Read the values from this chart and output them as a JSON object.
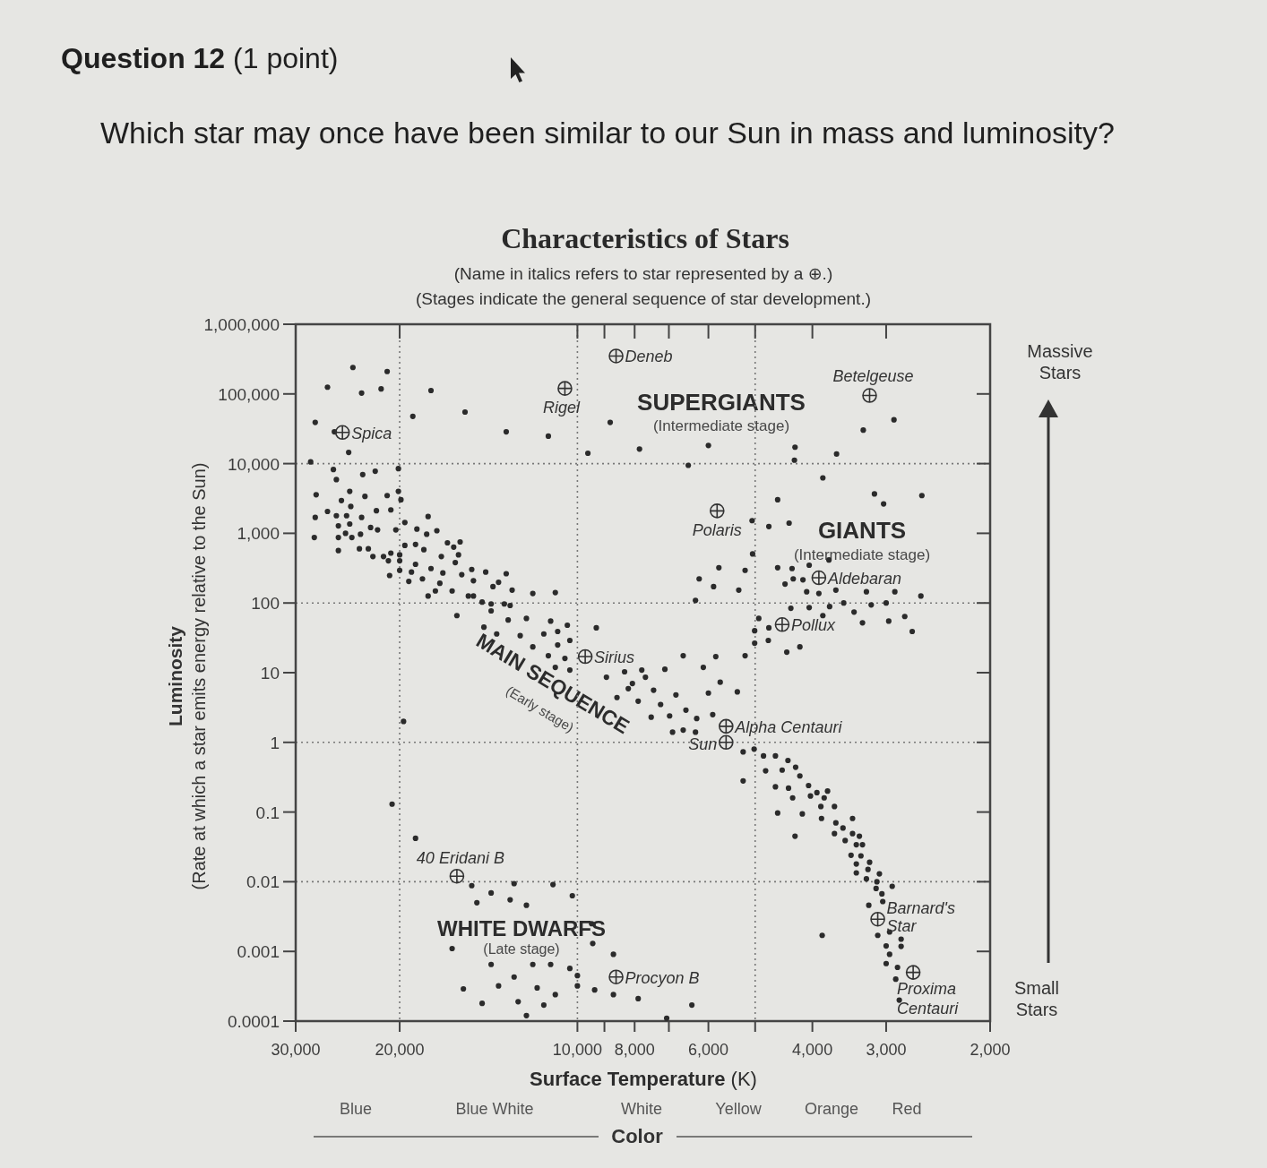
{
  "chart_data": {
    "type": "scatter",
    "title": "Characteristics of Stars",
    "subtitle": "(Name in italics refers to star represented by a ⊕.)\n(Stages indicate the general sequence of star development.)",
    "xlabel": "Surface Temperature (K)",
    "ylabel": "Luminosity\n(Rate at which a star emits energy relative to the Sun)",
    "log": "xy",
    "marker": "circle",
    "xlim": [
      30000,
      2000
    ],
    "ylim": [
      0.0001,
      1000000
    ],
    "xticks": [
      {
        "value": 30000,
        "label": "30,000"
      },
      {
        "value": 20000,
        "label": "20,000"
      },
      {
        "value": 10000,
        "label": "10,000"
      },
      {
        "value": 9000,
        "label": null
      },
      {
        "value": 8000,
        "label": "8,000"
      },
      {
        "value": 7000,
        "label": null
      },
      {
        "value": 6000,
        "label": "6,000"
      },
      {
        "value": 5000,
        "label": null
      },
      {
        "value": 4000,
        "label": "4,000"
      },
      {
        "value": 3000,
        "label": "3,000"
      },
      {
        "value": 2000,
        "label": "2,000"
      }
    ],
    "yticks": [
      {
        "value": 1000000,
        "label": "1,000,000"
      },
      {
        "value": 100000,
        "label": "100,000"
      },
      {
        "value": 10000,
        "label": "10,000"
      },
      {
        "value": 1000,
        "label": "1,000"
      },
      100,
      10,
      1,
      0.1,
      0.01,
      0.001,
      0.0001
    ],
    "ref_lines": [
      {
        "axis": "x",
        "value": 20000,
        "line_style": "dotted",
        "color": "#777777"
      },
      {
        "axis": "x",
        "value": 10000,
        "line_style": "dotted",
        "color": "#777777"
      },
      {
        "axis": "x",
        "value": 5000,
        "line_style": "dotted",
        "color": "#777777"
      },
      {
        "axis": "y",
        "value": 10000,
        "line_style": "dotted",
        "color": "#777777"
      },
      {
        "axis": "y",
        "value": 100,
        "line_style": "dotted",
        "color": "#777777"
      },
      {
        "axis": "y",
        "value": 1,
        "line_style": "dotted",
        "color": "#777777"
      },
      {
        "axis": "y",
        "value": 0.01,
        "line_style": "dotted",
        "color": "#777777"
      }
    ],
    "series": [
      {
        "color": "#2b2b2b",
        "x": [
          24000,
          21000,
          26500,
          23200,
          21500,
          17700,
          27800,
          25800,
          19000,
          15500,
          13200,
          11200,
          24400,
          9600,
          8800,
          7850,
          6000,
          6490,
          4280,
          4290,
          3640,
          3280,
          2910,
          3840,
          4580,
          3140,
          3030,
          2610,
          5060,
          4740,
          4380,
          5050,
          5760,
          5200,
          4580,
          4330,
          4050,
          4310,
          4150,
          4450,
          3750,
          6220,
          5880,
          5330,
          4090,
          3900,
          3650,
          3240,
          2900,
          2620,
          6310,
          4350,
          4050,
          3740,
          3540,
          3180,
          3000,
          3400,
          2790,
          3840,
          4930,
          5010,
          4740,
          5010,
          4750,
          4420,
          4200,
          3290,
          2970,
          2710,
          9290,
          6620,
          5830,
          5200,
          7110,
          6120,
          5730,
          6000,
          5360,
          6810,
          6550,
          6280,
          5900,
          6900,
          6620,
          6310,
          8930,
          8570,
          8200,
          7890,
          7670,
          7430,
          7230,
          7500,
          7780,
          8320,
          8070,
          6980
        ],
        "values": [
          240000,
          210000,
          125000,
          103000,
          118000,
          112000,
          39000,
          28600,
          47700,
          55000,
          28600,
          24800,
          14500,
          14100,
          39000,
          16200,
          18200,
          9460,
          17200,
          11200,
          13700,
          30300,
          42600,
          6240,
          3030,
          3680,
          2640,
          3480,
          1520,
          1250,
          1400,
          506,
          321,
          294,
          321,
          312,
          349,
          222,
          215,
          187,
          414,
          222,
          172,
          153,
          145,
          137,
          153,
          145,
          145,
          126,
          109,
          84,
          86,
          89,
          100,
          94,
          100,
          74,
          64,
          66,
          60,
          40,
          44,
          26.5,
          29,
          19.7,
          23.5,
          52,
          55,
          39,
          44,
          17.5,
          17,
          17.5,
          11.2,
          11.9,
          7.3,
          5.1,
          5.3,
          4.8,
          2.9,
          2.2,
          2.5,
          1.4,
          1.5,
          1.4,
          8.6,
          4.4,
          5.9,
          3.9,
          8.6,
          5.6,
          3.5,
          2.3,
          10.9,
          10.3,
          7,
          2.4
        ]
      },
      {
        "color": "#2b2b2b",
        "x": [
          5240,
          5020,
          4840,
          4620,
          4400,
          4800,
          4500,
          4270,
          4200,
          4620,
          4390,
          4060,
          3930,
          3770,
          4320,
          4030,
          3820,
          3870,
          3670,
          3420,
          3860,
          3650,
          3550,
          3670,
          3420,
          3330,
          3520,
          3370,
          3290,
          3440,
          3310,
          3200,
          3370,
          3220,
          3080,
          3370,
          3240,
          3110,
          2930,
          3120,
          3050,
          3210,
          3040,
          2960,
          3100,
          2830,
          3000,
          2830,
          2960,
          3000,
          2870,
          2890,
          2850,
          5240,
          4580,
          4160,
          4280,
          3850,
          9420,
          8690,
          9350,
          8690,
          7890,
          6400,
          7060,
          10000,
          10000,
          19700,
          20600,
          18800,
          15100,
          14000,
          14800,
          13000,
          12200,
          12800,
          11000,
          10200,
          16300,
          14000,
          11900,
          11100,
          10300,
          12800,
          13600,
          15600,
          11700,
          10900,
          14500,
          12600,
          11400,
          12200,
          9460
        ],
        "values": [
          0.73,
          0.8,
          0.64,
          0.64,
          0.55,
          0.39,
          0.4,
          0.44,
          0.33,
          0.23,
          0.22,
          0.24,
          0.19,
          0.2,
          0.16,
          0.17,
          0.16,
          0.12,
          0.12,
          0.081,
          0.081,
          0.07,
          0.059,
          0.049,
          0.049,
          0.045,
          0.039,
          0.034,
          0.034,
          0.024,
          0.0235,
          0.019,
          0.018,
          0.015,
          0.013,
          0.0134,
          0.011,
          0.01,
          0.0086,
          0.008,
          0.0067,
          0.0046,
          0.0052,
          0.0019,
          0.0017,
          0.0015,
          0.0012,
          0.00118,
          0.00091,
          0.00067,
          0.00059,
          0.0004,
          0.0002,
          0.28,
          0.097,
          0.094,
          0.045,
          0.0017,
          0.0013,
          0.00091,
          0.00028,
          0.00024,
          0.00021,
          0.00017,
          0.00011,
          0.00045,
          0.00032,
          2,
          0.13,
          0.042,
          0.0088,
          0.0069,
          0.005,
          0.0055,
          0.0046,
          0.0094,
          0.0091,
          0.0063,
          0.0011,
          0.00065,
          0.00065,
          0.00065,
          0.00057,
          0.00043,
          0.00032,
          0.00029,
          0.0003,
          0.00024,
          0.00018,
          0.00019,
          0.00017,
          0.00012,
          0.0025
        ]
      },
      {
        "color": "#2b2b2b",
        "x": [
          13100,
          12200,
          11100,
          10400,
          14400,
          13700,
          12500,
          11400,
          10800,
          11900,
          10800,
          10300,
          11200,
          10500,
          10900,
          10300,
          28300,
          25900,
          25600,
          23100,
          22000,
          20100,
          27700,
          25100,
          24300,
          22900,
          21000,
          20100,
          19900,
          27800,
          26500,
          25600,
          24600,
          24200,
          23200,
          21900,
          20700,
          27900,
          25400,
          24300,
          25400,
          24700,
          24100,
          23300,
          22400,
          21800,
          20300,
          19600,
          18700,
          17900,
          18000,
          17300,
          25400,
          23400,
          22600,
          22200,
          21300,
          20700,
          20000,
          19600,
          18800,
          18200,
          17000,
          16600,
          16200,
          15800,
          15900,
          20900,
          20000,
          20800,
          20000,
          19300,
          19100,
          18800,
          18300,
          17700,
          17100,
          16900,
          16100,
          15700,
          15100,
          15000,
          14300,
          13200,
          13600,
          13900,
          12900,
          11900,
          10900,
          17900,
          17400,
          16300,
          15300,
          15000,
          14500,
          14000,
          13300,
          13000,
          16000,
          14000
        ],
        "values": [
          57,
          60,
          55,
          48,
          45,
          36,
          34,
          36,
          39,
          23.5,
          25,
          29,
          17.5,
          16,
          11.9,
          10.9,
          10600,
          8240,
          5900,
          6970,
          7790,
          8470,
          3580,
          2950,
          4000,
          3390,
          3480,
          4000,
          3030,
          1690,
          2060,
          1790,
          1790,
          2430,
          1690,
          2110,
          2170,
          870,
          1280,
          1360,
          870,
          1000,
          870,
          970,
          1210,
          1120,
          1120,
          1430,
          1150,
          1740,
          970,
          1090,
          566,
          600,
          600,
          464,
          464,
          520,
          491,
          671,
          692,
          582,
          464,
          731,
          634,
          753,
          491,
          403,
          403,
          248,
          294,
          204,
          278,
          359,
          222,
          312,
          192,
          270,
          380,
          255,
          303,
          209,
          278,
          263,
          198,
          172,
          153,
          137,
          141,
          126,
          149,
          149,
          126,
          126,
          103,
          97,
          97,
          92,
          66,
          77
        ]
      },
      {
        "name": "Deneb",
        "color": "#333333",
        "marker": "cross",
        "x": [
          8600
        ],
        "values": [
          350000
        ]
      },
      {
        "name": "Rigel",
        "color": "#333333",
        "marker": "cross",
        "x": [
          10500
        ],
        "values": [
          120000
        ]
      },
      {
        "name": "Betelgeuse",
        "color": "#333333",
        "marker": "cross",
        "x": [
          3200
        ],
        "values": [
          95000
        ]
      },
      {
        "name": "Spica",
        "color": "#333333",
        "marker": "cross",
        "x": [
          25000
        ],
        "values": [
          28000
        ]
      },
      {
        "name": "Polaris",
        "color": "#333333",
        "marker": "cross",
        "x": [
          5800
        ],
        "values": [
          2100
        ]
      },
      {
        "name": "Aldebaran",
        "color": "#333333",
        "marker": "cross",
        "x": [
          3900
        ],
        "values": [
          230
        ]
      },
      {
        "name": "Pollux",
        "color": "#333333",
        "marker": "cross",
        "x": [
          4500
        ],
        "values": [
          49
        ]
      },
      {
        "name": "Sirius",
        "color": "#333333",
        "marker": "cross",
        "x": [
          9700
        ],
        "values": [
          17
        ]
      },
      {
        "name": "Alpha Centauri",
        "color": "#333333",
        "marker": "cross",
        "x": [
          5600
        ],
        "values": [
          1.7
        ]
      },
      {
        "name": "Sun",
        "color": "#333333",
        "marker": "cross",
        "x": [
          5600
        ],
        "values": [
          1
        ]
      },
      {
        "name": "40 Eridani B",
        "color": "#333333",
        "marker": "cross",
        "x": [
          16000
        ],
        "values": [
          0.012
        ]
      },
      {
        "name": "Procyon B",
        "color": "#333333",
        "marker": "cross",
        "x": [
          8600
        ],
        "values": [
          0.00043
        ]
      },
      {
        "name": "Barnard's Star",
        "color": "#333333",
        "marker": "cross",
        "x": [
          3100
        ],
        "values": [
          0.0029
        ]
      },
      {
        "name": "Proxima Centauri",
        "color": "#333333",
        "marker": "cross",
        "x": [
          2700
        ],
        "values": [
          0.0005
        ]
      }
    ],
    "annotations": [
      "Question 12 (1 point)",
      "Which star may once have been similar to our Sun in mass and luminosity?",
      "Massive Stars",
      "Small Stars",
      "SUPERGIANTS",
      "(Intermediate stage)",
      "GIANTS",
      "(Intermediate stage)",
      "MAIN SEQUENCE",
      "(Early stage)",
      "WHITE DWARFS",
      "(Late stage)",
      "Blue",
      "Blue White",
      "White",
      "Yellow",
      "Orange",
      "Red",
      "Color"
    ]
  }
}
